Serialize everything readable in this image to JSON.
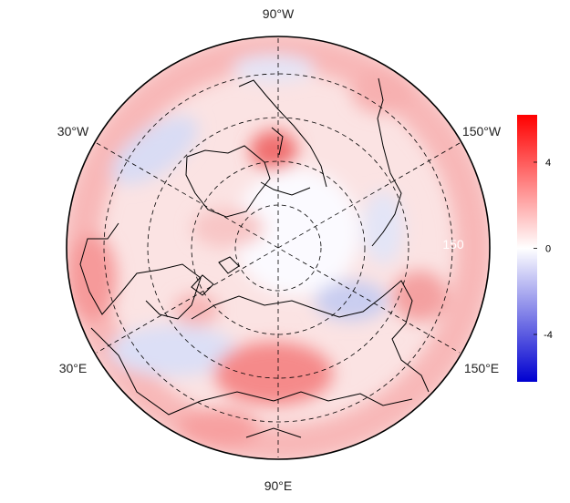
{
  "map": {
    "projection": "north polar stereographic",
    "longitude_labels": {
      "top": "90°W",
      "upper_left": "30°W",
      "upper_right": "150°W",
      "lower_left": "30°E",
      "lower_right": "150°E",
      "bottom": "90°E",
      "inner_right": "150"
    },
    "graticule": "dashed lines",
    "field": "anomaly (red = positive, blue = negative)"
  },
  "colorbar": {
    "ticks": [
      "4",
      "0",
      "-4"
    ],
    "tick_values": [
      4,
      0,
      -4
    ],
    "range": [
      -6.2,
      6.2
    ],
    "colors": {
      "high": "#ff0000",
      "mid": "#ffffff",
      "low": "#0000d0"
    }
  }
}
